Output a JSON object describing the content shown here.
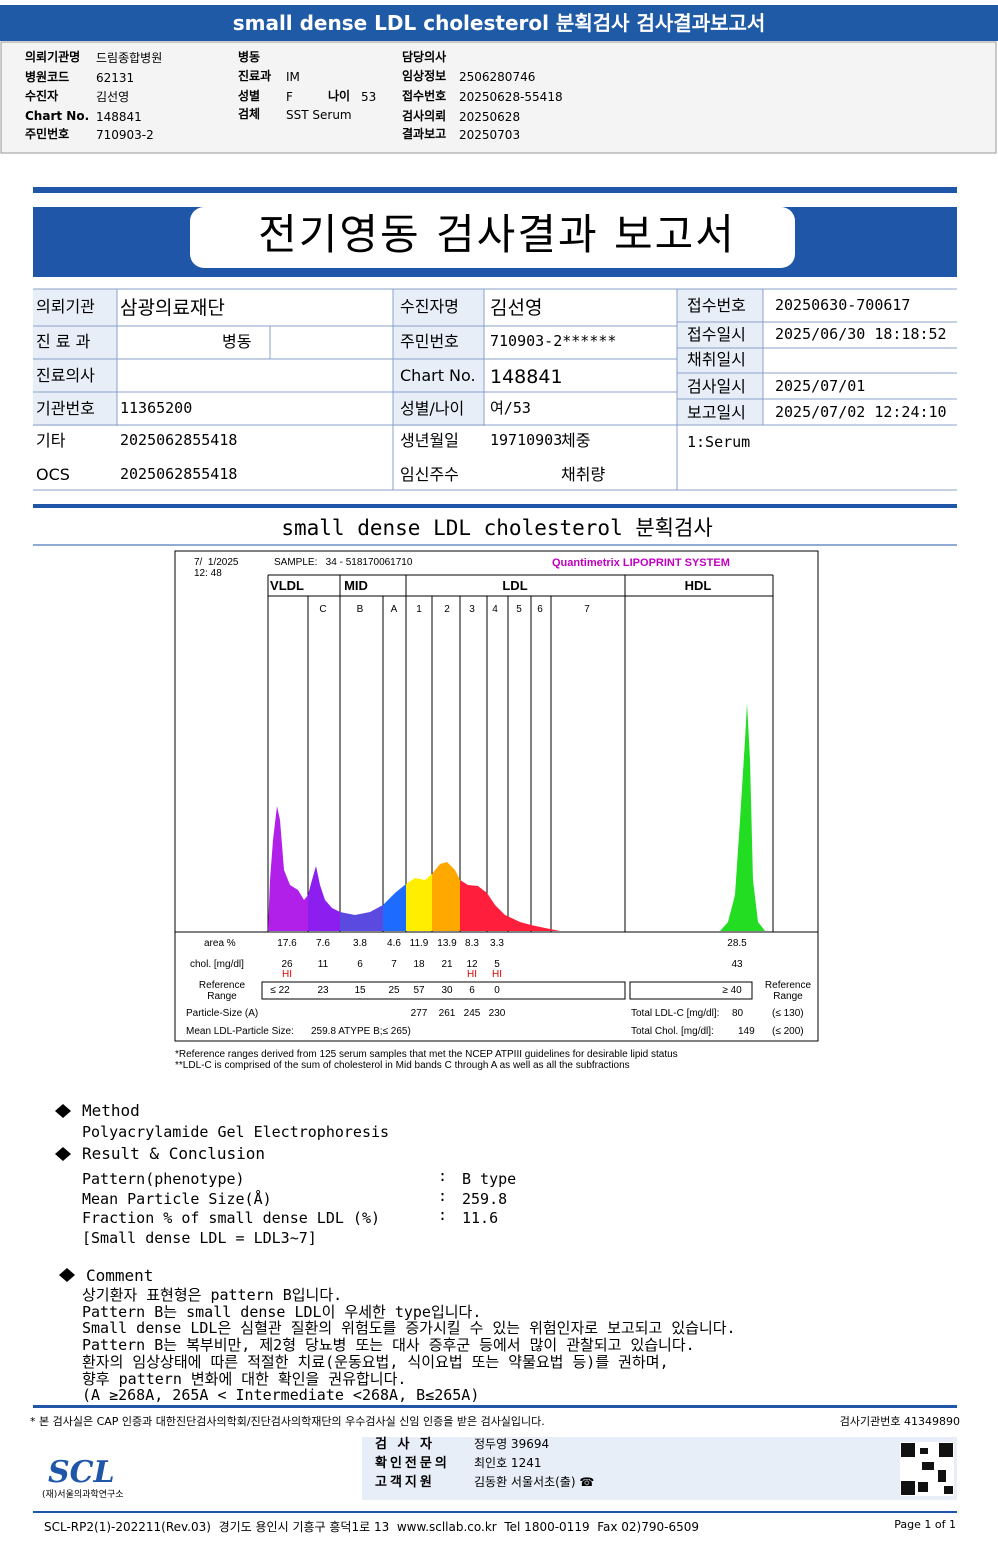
{
  "header": {
    "title": "small dense LDL cholesterol 분획검사 검사결과보고서",
    "fields": [
      {
        "label": "의뢰기관명",
        "value": "드림종합병원"
      },
      {
        "label": "병원코드",
        "value": "62131"
      },
      {
        "label": "수진자",
        "value": "김선영"
      },
      {
        "label": "Chart No.",
        "value": "148841"
      },
      {
        "label": "주민번호",
        "value": "710903-2"
      },
      {
        "label": "병동"
      },
      {
        "label": "진료과",
        "value": "IM"
      },
      {
        "label": "성별",
        "value": "F"
      },
      {
        "label": "검체",
        "value": "SST Serum"
      },
      {
        "label": "나이",
        "value": "53"
      },
      {
        "label": "담당의사"
      },
      {
        "label": "임상정보",
        "value": "2506280746"
      },
      {
        "label": "접수번호",
        "value": "20250628-55418"
      },
      {
        "label": "검사의뢰",
        "value": "20250628"
      },
      {
        "label": "결과보고",
        "value": "20250703"
      }
    ]
  },
  "report": {
    "title": "전기영동 검사결과 보고서",
    "info": [
      {
        "label": "의뢰기관",
        "value": "삼광의료재단"
      },
      {
        "label": "진 료 과"
      },
      {
        "label": "진료의사"
      },
      {
        "label": "기관번호",
        "value": "11365200"
      },
      {
        "label": "기타",
        "value": "2025062855418"
      },
      {
        "label": "OCS",
        "value": "2025062855418"
      },
      {
        "label": "수진자명",
        "value": "김선영"
      },
      {
        "label": "주민번호",
        "value": "710903-2******"
      },
      {
        "label": "Chart No.",
        "value": "148841"
      },
      {
        "label": "성별/나이",
        "value": "여/53"
      },
      {
        "label": "생년월일",
        "value": "19710903"
      },
      {
        "label": "임신주수"
      },
      {
        "label": "병동"
      },
      {
        "label": "체중"
      },
      {
        "label": "채취량"
      },
      {
        "label": "접수번호",
        "value": "20250630-700617"
      },
      {
        "label": "접수일시",
        "value": "2025/06/30 18:18:52"
      },
      {
        "label": "채취일시"
      },
      {
        "label": "검사일시",
        "value": "2025/07/01"
      },
      {
        "label": "보고일시",
        "value": "2025/07/02 12:24:10"
      }
    ],
    "specimen": "1:Serum"
  },
  "section_title": "small dense LDL cholesterol 분획검사",
  "lipoprint": {
    "time": [
      "7/  1/2025",
      "12: 48"
    ],
    "sample": "SAMPLE:   34 - 518170061710",
    "brand": "Quantimetrix LIPOPRINT SYSTEM",
    "fractions": [
      "VLDL",
      "MID",
      "LDL",
      "HDL"
    ],
    "bands": [
      "C",
      "B",
      "A",
      "1",
      "2",
      "3",
      "4",
      "5",
      "6",
      "7"
    ],
    "area": {
      "label": "area %",
      "values": [
        "17.6",
        "7.6",
        "3.8",
        "4.6",
        "11.9",
        "13.9",
        "8.3",
        "3.3",
        "28.5"
      ]
    },
    "chol": {
      "label": "chol. [mg/dl]",
      "values": [
        "26",
        "11",
        "6",
        "7",
        "18",
        "21",
        "12",
        "5",
        "43"
      ],
      "flags": [
        "HI",
        null,
        null,
        null,
        null,
        null,
        "HI",
        "HI",
        null
      ]
    },
    "reference": {
      "label": "Reference Range",
      "values": [
        "≤ 22",
        "23",
        "15",
        "25",
        "57",
        "30",
        "6",
        "0",
        "≥ 40"
      ],
      "right_label": "Reference Range"
    },
    "particle_size": {
      "label": "Particle-Size (A)",
      "values": [
        "277",
        "261",
        "245",
        "230"
      ]
    },
    "mean_size": {
      "label": "Mean LDL-Particle Size:",
      "value": "259.8 ATYPE B;≤ 265)"
    },
    "total_ldl": {
      "label": "Total LDL-C [mg/dl]:",
      "value": "80",
      "range": "(≤ 130)"
    },
    "total_chol": {
      "label": "Total Chol. [mg/dl]:",
      "value": "149",
      "range": "(≤ 200)"
    },
    "footnotes": [
      "*Reference ranges derived from 125 serum samples that met the NCEP ATPIII guidelines for desirable lipid status",
      "**LDL-C is comprised of the sum of cholesterol in Mid bands C through A as well as all the subfractions"
    ]
  },
  "method": {
    "title": "Method",
    "text": "Polyacrylamide Gel Electrophoresis"
  },
  "result": {
    "title": "Result & Conclusion",
    "rows": [
      {
        "label": "Pattern(phenotype)",
        "separator": ":",
        "value": "B type"
      },
      {
        "label": "Mean Particle Size(Å)",
        "separator": ":",
        "value": "259.8"
      },
      {
        "label": "Fraction % of small dense LDL (%)",
        "separator": ":",
        "value": "11.6"
      }
    ],
    "note": "[Small dense LDL = LDL3~7]"
  },
  "comment": {
    "title": "Comment",
    "lines": [
      "상기환자 표현형은 pattern B입니다.",
      "Pattern B는 small dense LDL이 우세한 type입니다.",
      "Small dense LDL은 심혈관 질환의 위험도를 증가시킬 수 있는 위험인자로 보고되고 있습니다.",
      "Pattern B는 복부비만, 제2형 당뇨병 또는 대사 증후군 등에서 많이 관찰되고 있습니다.",
      "환자의 임상상태에 따른 적절한 치료(운동요법, 식이요법 또는 약물요법 등)를 권하며,",
      "향후 pattern 변화에 대한 확인을 권유합니다.",
      "(A ≥268A, 265A < Intermediate <268A, B≤265A)"
    ]
  },
  "footer": {
    "note": "* 본 검사실은 CAP 인증과 대한진단검사의학회/진단검사의학재단의 우수검사실 신임 인증을 받은 검사실입니다.",
    "lab_number": "검사기관번호 41349890",
    "signatures": [
      {
        "label": "검 사 자",
        "value": "정두영 39694"
      },
      {
        "label": "확인전문의",
        "value": "최인호 1241"
      },
      {
        "label": "고객지원",
        "value": "김동환 서울서초(출) ☎"
      }
    ],
    "logo": "SCL",
    "org": "(재)서울의과학연구소",
    "address": "SCL-RP2(1)-202211(Rev.03)  경기도 용인시 기흥구 흥덕1로 13  www.scllab.co.kr  Tel 1800-0119  Fax 02)790-6509",
    "page": "Page 1 of 1"
  }
}
